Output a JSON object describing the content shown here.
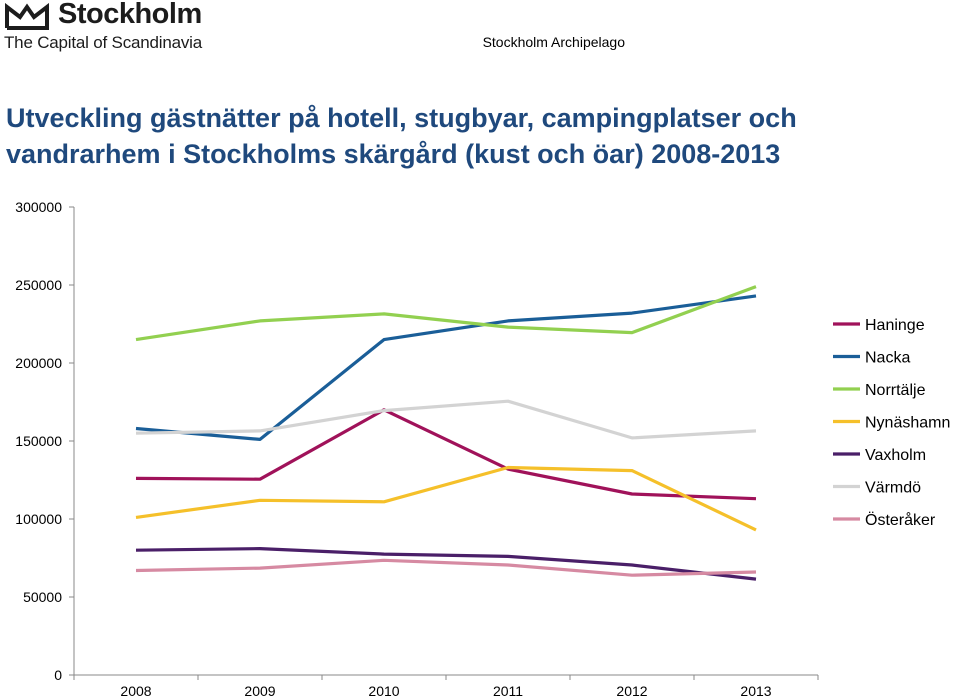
{
  "header": {
    "logo_name": "Stockholm",
    "logo_tagline": "The Capital of Scandinavia",
    "right_label": "Stockholm Archipelago"
  },
  "chart_data": {
    "type": "line",
    "title": "Utveckling gästnätter på hotell, stugbyar, campingplatser och vandrarhem i Stockholms skärgård (kust och öar) 2008-2013",
    "xlabel": "",
    "ylabel": "",
    "categories": [
      "2008",
      "2009",
      "2010",
      "2011",
      "2012",
      "2013"
    ],
    "ylim": [
      0,
      300000
    ],
    "yticks": [
      0,
      50000,
      100000,
      150000,
      200000,
      250000,
      300000
    ],
    "yticks_text": [
      "0",
      "50000",
      "100000",
      "150000",
      "200000",
      "250000",
      "300000"
    ],
    "grid": false,
    "legend_position": "right",
    "series": [
      {
        "name": "Haninge",
        "color": "#a0125a",
        "values": [
          126000,
          125500,
          170000,
          132000,
          116000,
          113000
        ]
      },
      {
        "name": "Nacka",
        "color": "#1a5e98",
        "values": [
          158000,
          151000,
          215000,
          227000,
          232000,
          243000
        ]
      },
      {
        "name": "Norrtälje",
        "color": "#92d050",
        "values": [
          215000,
          227000,
          231500,
          223000,
          219500,
          249000
        ]
      },
      {
        "name": "Nynäshamn",
        "color": "#f5c02a",
        "values": [
          101000,
          112000,
          111000,
          133000,
          131000,
          93000
        ]
      },
      {
        "name": "Vaxholm",
        "color": "#4a1f68",
        "values": [
          80000,
          81000,
          77500,
          76000,
          70500,
          61500
        ]
      },
      {
        "name": "Värmdö",
        "color": "#d3d3d3",
        "values": [
          155000,
          156500,
          169500,
          175500,
          152000,
          156500
        ]
      },
      {
        "name": "Österåker",
        "color": "#d68aa2",
        "values": [
          67000,
          68500,
          73500,
          70500,
          64000,
          66000
        ]
      }
    ]
  }
}
